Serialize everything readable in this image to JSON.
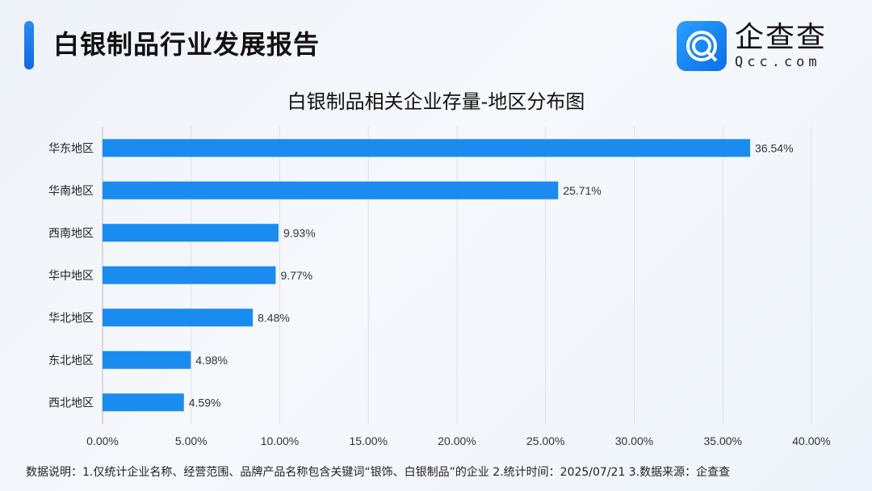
{
  "header": {
    "title": "白银制品行业发展报告",
    "logo_cn": "企查查",
    "logo_en": "Qcc.com"
  },
  "chart_data": {
    "type": "bar",
    "orientation": "horizontal",
    "title": "白银制品相关企业存量-地区分布图",
    "categories": [
      "华东地区",
      "华南地区",
      "西南地区",
      "华中地区",
      "华北地区",
      "东北地区",
      "西北地区"
    ],
    "values": [
      36.54,
      25.71,
      9.93,
      9.77,
      8.48,
      4.98,
      4.59
    ],
    "value_labels": [
      "36.54%",
      "25.71%",
      "9.93%",
      "9.77%",
      "8.48%",
      "4.98%",
      "4.59%"
    ],
    "xlim": [
      0,
      40
    ],
    "xticks": [
      "0.00%",
      "5.00%",
      "10.00%",
      "15.00%",
      "20.00%",
      "25.00%",
      "30.00%",
      "35.00%",
      "40.00%"
    ],
    "grid": true,
    "bar_color": "#1a8cf0"
  },
  "footer": {
    "note": "数据说明：1.仅统计企业名称、经营范围、品牌产品名称包含关键词“银饰、白银制品”的企业   2.统计时间：2025/07/21    3.数据来源：企查查"
  }
}
